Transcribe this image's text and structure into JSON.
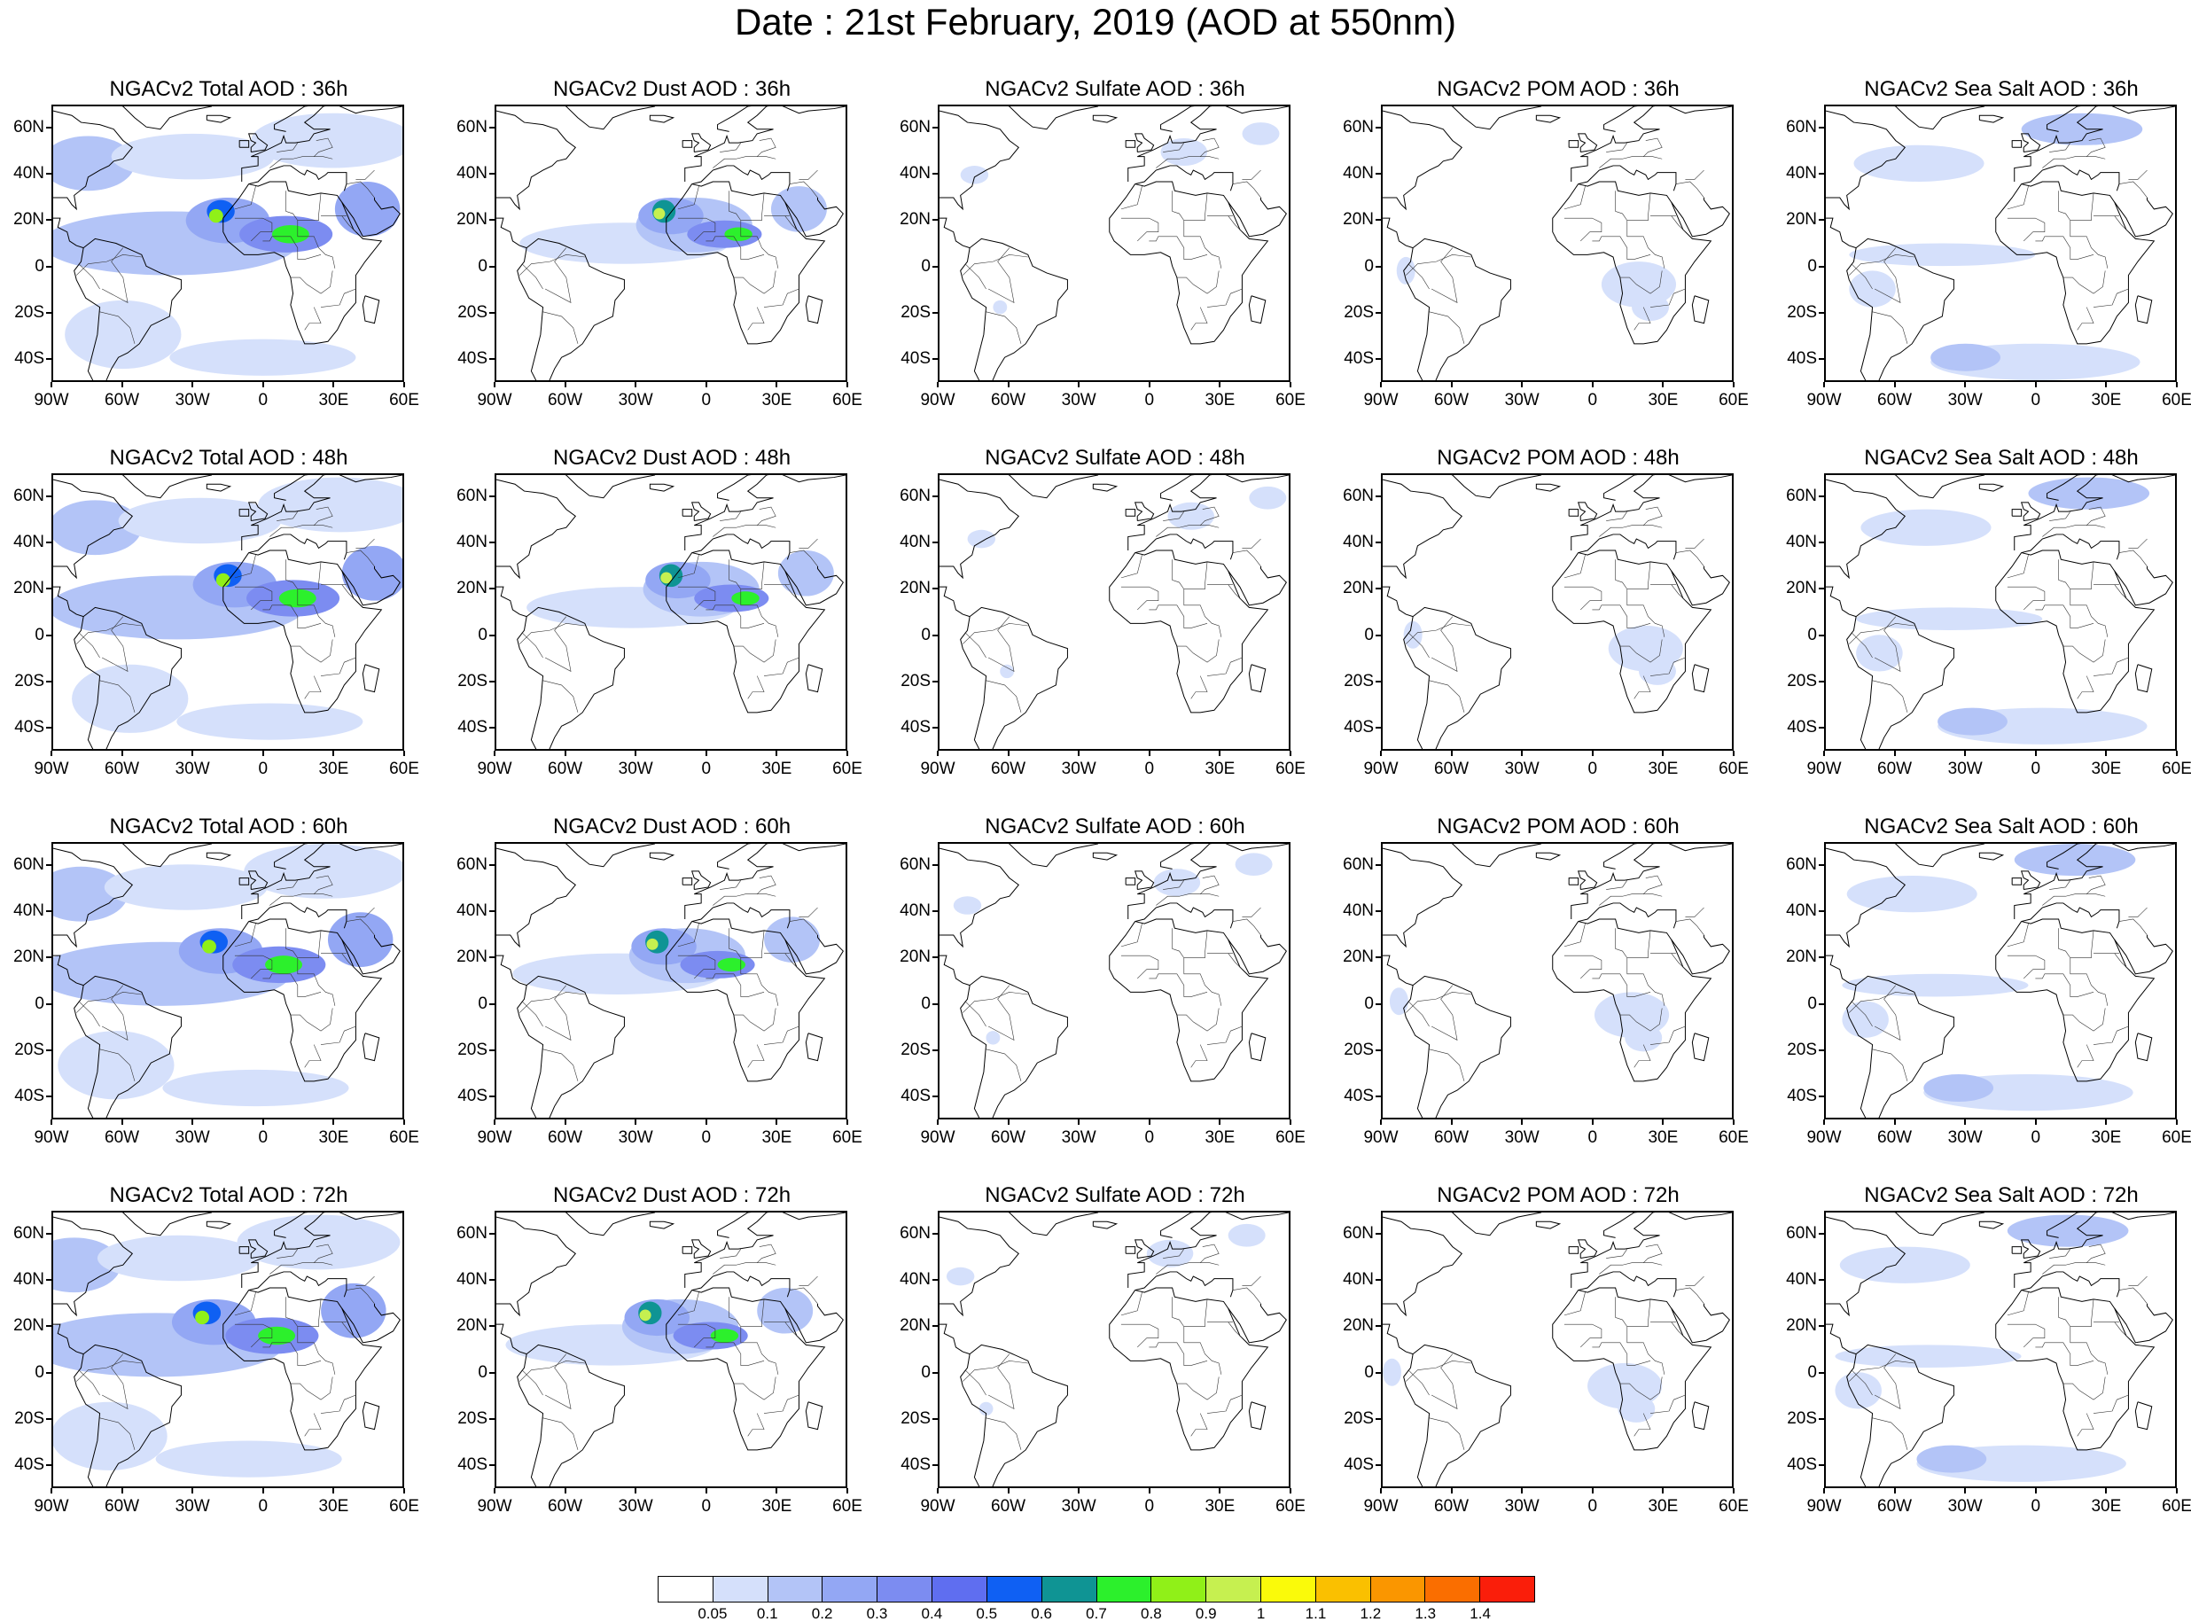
{
  "title": "Date : 21st February, 2019 (AOD at 550nm)",
  "lat_labels": [
    "60N",
    "40N",
    "20N",
    "0",
    "20S",
    "40S"
  ],
  "lon_labels": [
    "90W",
    "60W",
    "30W",
    "0",
    "30E",
    "60E"
  ],
  "extent": {
    "lon_min": -90,
    "lon_max": 60,
    "lat_min": -50,
    "lat_max": 70
  },
  "panels": [
    {
      "title": "NGACv2 Total AOD : 36h",
      "species": "total",
      "hour": 36
    },
    {
      "title": "NGACv2 Dust AOD : 36h",
      "species": "dust",
      "hour": 36
    },
    {
      "title": "NGACv2 Sulfate AOD : 36h",
      "species": "sulfate",
      "hour": 36
    },
    {
      "title": "NGACv2 POM AOD : 36h",
      "species": "pom",
      "hour": 36
    },
    {
      "title": "NGACv2 Sea Salt AOD : 36h",
      "species": "seasalt",
      "hour": 36
    },
    {
      "title": "NGACv2 Total AOD : 48h",
      "species": "total",
      "hour": 48
    },
    {
      "title": "NGACv2 Dust AOD : 48h",
      "species": "dust",
      "hour": 48
    },
    {
      "title": "NGACv2 Sulfate AOD : 48h",
      "species": "sulfate",
      "hour": 48
    },
    {
      "title": "NGACv2 POM AOD : 48h",
      "species": "pom",
      "hour": 48
    },
    {
      "title": "NGACv2 Sea Salt AOD : 48h",
      "species": "seasalt",
      "hour": 48
    },
    {
      "title": "NGACv2 Total AOD : 60h",
      "species": "total",
      "hour": 60
    },
    {
      "title": "NGACv2 Dust AOD : 60h",
      "species": "dust",
      "hour": 60
    },
    {
      "title": "NGACv2 Sulfate AOD : 60h",
      "species": "sulfate",
      "hour": 60
    },
    {
      "title": "NGACv2 POM AOD : 60h",
      "species": "pom",
      "hour": 60
    },
    {
      "title": "NGACv2 Sea Salt AOD : 60h",
      "species": "seasalt",
      "hour": 60
    },
    {
      "title": "NGACv2 Total AOD : 72h",
      "species": "total",
      "hour": 72
    },
    {
      "title": "NGACv2 Dust AOD : 72h",
      "species": "dust",
      "hour": 72
    },
    {
      "title": "NGACv2 Sulfate AOD : 72h",
      "species": "sulfate",
      "hour": 72
    },
    {
      "title": "NGACv2 POM AOD : 72h",
      "species": "pom",
      "hour": 72
    },
    {
      "title": "NGACv2 Sea Salt  AOD : 72h",
      "species": "seasalt",
      "hour": 72
    }
  ],
  "colorbar": {
    "labels": [
      "0.05",
      "0.1",
      "0.2",
      "0.3",
      "0.4",
      "0.5",
      "0.6",
      "0.7",
      "0.8",
      "0.9",
      "1",
      "1.1",
      "1.2",
      "1.3",
      "1.4"
    ],
    "colors": [
      "#ffffff",
      "#d5e0fb",
      "#b3c4f7",
      "#93a7f4",
      "#7c8cf1",
      "#5f6ef0",
      "#0f60f3",
      "#0f9494",
      "#2cf02c",
      "#90f018",
      "#c6f050",
      "#fafa0a",
      "#fac000",
      "#fa9600",
      "#fa6e00",
      "#fa1e0a"
    ]
  }
}
